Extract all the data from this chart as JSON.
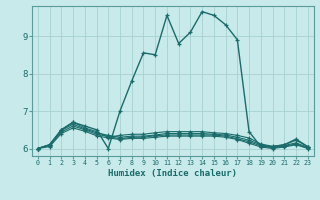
{
  "title": "",
  "xlabel": "Humidex (Indice chaleur)",
  "ylabel": "",
  "bg_color": "#c8eaea",
  "grid_color": "#a8d0d0",
  "line_color": "#1a6b6b",
  "xlim": [
    -0.5,
    23.5
  ],
  "ylim": [
    5.8,
    9.8
  ],
  "yticks": [
    6,
    7,
    8,
    9
  ],
  "xticks": [
    0,
    1,
    2,
    3,
    4,
    5,
    6,
    7,
    8,
    9,
    10,
    11,
    12,
    13,
    14,
    15,
    16,
    17,
    18,
    19,
    20,
    21,
    22,
    23
  ],
  "lines": [
    {
      "x": [
        0,
        1,
        2,
        3,
        4,
        5,
        6,
        7,
        8,
        9,
        10,
        11,
        12,
        13,
        14,
        15,
        16,
        17,
        18,
        19,
        20,
        21,
        22,
        23
      ],
      "y": [
        6.0,
        6.1,
        6.5,
        6.7,
        6.6,
        6.5,
        6.0,
        7.0,
        7.8,
        8.55,
        8.5,
        9.55,
        8.8,
        9.1,
        9.65,
        9.55,
        9.3,
        8.9,
        6.45,
        6.05,
        6.05,
        6.1,
        6.25,
        6.05
      ]
    },
    {
      "x": [
        0,
        1,
        2,
        3,
        4,
        5,
        6,
        7,
        8,
        9,
        10,
        11,
        12,
        13,
        14,
        15,
        16,
        17,
        18,
        19,
        20,
        21,
        22,
        23
      ],
      "y": [
        6.0,
        6.1,
        6.5,
        6.7,
        6.55,
        6.45,
        6.3,
        6.35,
        6.38,
        6.38,
        6.42,
        6.45,
        6.45,
        6.45,
        6.45,
        6.42,
        6.4,
        6.35,
        6.28,
        6.12,
        6.06,
        6.1,
        6.22,
        6.05
      ]
    },
    {
      "x": [
        0,
        1,
        2,
        3,
        4,
        5,
        6,
        7,
        8,
        9,
        10,
        11,
        12,
        13,
        14,
        15,
        16,
        17,
        18,
        19,
        20,
        21,
        22,
        23
      ],
      "y": [
        6.0,
        6.1,
        6.48,
        6.65,
        6.52,
        6.42,
        6.35,
        6.3,
        6.33,
        6.33,
        6.36,
        6.4,
        6.4,
        6.4,
        6.4,
        6.38,
        6.36,
        6.3,
        6.22,
        6.1,
        6.04,
        6.08,
        6.15,
        6.03
      ]
    },
    {
      "x": [
        0,
        1,
        2,
        3,
        4,
        5,
        6,
        7,
        8,
        9,
        10,
        11,
        12,
        13,
        14,
        15,
        16,
        17,
        18,
        19,
        20,
        21,
        22,
        23
      ],
      "y": [
        6.0,
        6.08,
        6.44,
        6.6,
        6.5,
        6.38,
        6.32,
        6.26,
        6.3,
        6.3,
        6.34,
        6.36,
        6.36,
        6.36,
        6.36,
        6.36,
        6.33,
        6.26,
        6.18,
        6.07,
        6.02,
        6.06,
        6.12,
        6.01
      ]
    },
    {
      "x": [
        0,
        1,
        2,
        3,
        4,
        5,
        6,
        7,
        8,
        9,
        10,
        11,
        12,
        13,
        14,
        15,
        16,
        17,
        18,
        19,
        20,
        21,
        22,
        23
      ],
      "y": [
        6.0,
        6.05,
        6.4,
        6.55,
        6.46,
        6.34,
        6.28,
        6.24,
        6.27,
        6.27,
        6.3,
        6.33,
        6.33,
        6.33,
        6.33,
        6.33,
        6.3,
        6.24,
        6.14,
        6.04,
        6.0,
        6.04,
        6.1,
        6.0
      ]
    }
  ]
}
